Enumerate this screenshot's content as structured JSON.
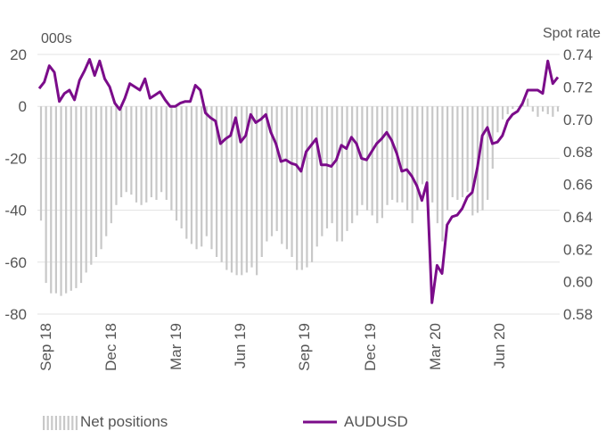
{
  "chart_data": {
    "type": "bar+line",
    "left_axis": {
      "unit_label": "000s",
      "ylim": [
        -80,
        20
      ],
      "ticks": [
        "20",
        "0",
        "-20",
        "-40",
        "-60",
        "-80"
      ]
    },
    "right_axis": {
      "unit_label": "Spot rate",
      "ylim": [
        0.58,
        0.74
      ],
      "ticks": [
        "0.74",
        "0.72",
        "0.70",
        "0.68",
        "0.66",
        "0.64",
        "0.62",
        "0.60",
        "0.58"
      ]
    },
    "x_tick_labels": [
      "Sep 18",
      "Dec 18",
      "Mar 19",
      "Jun 19",
      "Sep 19",
      "Dec 19",
      "Mar 20",
      "Jun 20"
    ],
    "grid": true,
    "legend": {
      "placement": "bottom"
    },
    "series": [
      {
        "name": "Net positions",
        "type": "bar",
        "axis": "left",
        "color": "#c8c8c8",
        "values": [
          -44,
          -68,
          -72,
          -72,
          -73,
          -72,
          -71,
          -70,
          -68,
          -64,
          -61,
          -58,
          -55,
          -50,
          -45,
          -38,
          -35,
          -33,
          -34,
          -37,
          -38,
          -37,
          -35,
          -36,
          -33,
          -36,
          -40,
          -44,
          -47,
          -51,
          -53,
          -55,
          -54,
          -50,
          -55,
          -58,
          -60,
          -63,
          -64,
          -65,
          -65,
          -64,
          -62,
          -65,
          -58,
          -52,
          -50,
          -48,
          -53,
          -55,
          -58,
          -63,
          -63,
          -62,
          -60,
          -54,
          -50,
          -47,
          -45,
          -52,
          -52,
          -48,
          -45,
          -42,
          -38,
          -40,
          -42,
          -45,
          -43,
          -38,
          -36,
          -37,
          -37,
          -40,
          -45,
          -40,
          -30,
          -33,
          -37,
          -45,
          -52,
          -40,
          -35,
          -36,
          -35,
          -33,
          -42,
          -41,
          -40,
          -36,
          -24,
          -10,
          -5,
          -3,
          -1,
          0,
          2,
          3,
          -2,
          -4,
          -2,
          -3,
          -4,
          -2
        ]
      },
      {
        "name": "AUDUSD",
        "type": "line",
        "axis": "right",
        "color": "#7b0c8a",
        "values": [
          0.719,
          0.723,
          0.733,
          0.729,
          0.711,
          0.716,
          0.718,
          0.712,
          0.724,
          0.73,
          0.737,
          0.727,
          0.736,
          0.725,
          0.72,
          0.71,
          0.706,
          0.713,
          0.722,
          0.72,
          0.718,
          0.725,
          0.713,
          0.715,
          0.717,
          0.712,
          0.708,
          0.708,
          0.71,
          0.711,
          0.711,
          0.721,
          0.718,
          0.704,
          0.701,
          0.699,
          0.685,
          0.688,
          0.69,
          0.701,
          0.686,
          0.69,
          0.703,
          0.698,
          0.7,
          0.703,
          0.692,
          0.685,
          0.674,
          0.675,
          0.673,
          0.672,
          0.668,
          0.68,
          0.684,
          0.688,
          0.672,
          0.672,
          0.671,
          0.675,
          0.684,
          0.682,
          0.689,
          0.685,
          0.676,
          0.675,
          0.68,
          0.685,
          0.688,
          0.692,
          0.687,
          0.679,
          0.668,
          0.669,
          0.665,
          0.659,
          0.65,
          0.661,
          0.587,
          0.61,
          0.605,
          0.635,
          0.64,
          0.641,
          0.645,
          0.652,
          0.655,
          0.67,
          0.69,
          0.695,
          0.685,
          0.686,
          0.69,
          0.699,
          0.703,
          0.705,
          0.71,
          0.718,
          0.718,
          0.718,
          0.716,
          0.736,
          0.722,
          0.726
        ]
      }
    ]
  }
}
